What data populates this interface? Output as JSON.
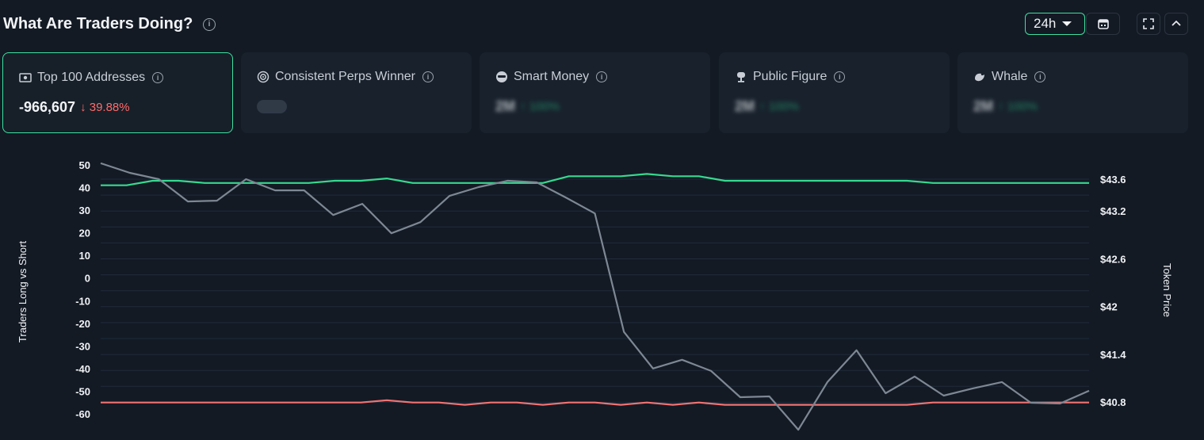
{
  "header": {
    "title": "What Are Traders Doing?",
    "timeframe": "24h"
  },
  "cards": [
    {
      "label": "Top 100 Addresses",
      "icon": "money-icon",
      "value": "-966,607",
      "change": "39.88%",
      "change_dir": "down",
      "active": true
    },
    {
      "label": "Consistent Perps Winner",
      "icon": "target-icon",
      "value": "",
      "change": "",
      "loading": true
    },
    {
      "label": "Smart Money",
      "icon": "sunglasses-icon",
      "value": "2M",
      "change": "100%",
      "change_dir": "up",
      "blurred": true
    },
    {
      "label": "Public Figure",
      "icon": "microphone-icon",
      "value": "2M",
      "change": "100%",
      "change_dir": "up",
      "blurred": true
    },
    {
      "label": "Whale",
      "icon": "whale-icon",
      "value": "2M",
      "change": "100%",
      "change_dir": "up",
      "blurred": true
    }
  ],
  "chart_data": {
    "type": "line",
    "left_axis": {
      "label": "Traders Long vs Short",
      "ticks": [
        "50",
        "40",
        "30",
        "20",
        "10",
        "0",
        "-10",
        "-20",
        "-30",
        "-40",
        "-50",
        "-60"
      ],
      "range": [
        -60,
        50
      ]
    },
    "right_axis": {
      "label": "Token Price",
      "ticks": [
        "$43.6",
        "$43.2",
        "$42.6",
        "$42",
        "$41.4",
        "$40.8"
      ],
      "range": [
        40.8,
        43.6
      ]
    },
    "grid": true,
    "series": [
      {
        "color": "#36d98f",
        "axis": "left",
        "values": [
          41,
          41,
          43,
          43,
          42,
          42,
          42,
          42,
          42,
          43,
          43,
          44,
          42,
          42,
          42,
          42,
          42,
          42,
          45,
          45,
          45,
          46,
          45,
          45,
          43,
          43,
          43,
          43,
          43,
          43,
          43,
          43,
          42,
          42,
          42,
          42,
          42,
          42,
          42
        ]
      },
      {
        "color": "#f07272",
        "axis": "left",
        "values": [
          -55,
          -55,
          -55,
          -55,
          -55,
          -55,
          -55,
          -55,
          -55,
          -55,
          -55,
          -54,
          -55,
          -55,
          -56,
          -55,
          -55,
          -56,
          -55,
          -55,
          -56,
          -55,
          -56,
          -55,
          -56,
          -56,
          -56,
          -56,
          -56,
          -56,
          -56,
          -56,
          -55,
          -55,
          -55,
          -55,
          -55,
          -55,
          -55
        ]
      },
      {
        "color": "#7d8894",
        "axis": "right",
        "values": [
          43.8,
          43.68,
          43.6,
          43.32,
          43.33,
          43.6,
          43.46,
          43.46,
          43.15,
          43.29,
          42.92,
          43.06,
          43.39,
          43.5,
          43.58,
          43.56,
          43.37,
          43.17,
          41.68,
          41.22,
          41.33,
          41.19,
          40.86,
          40.87,
          40.45,
          41.05,
          41.45,
          40.91,
          41.12,
          40.88,
          40.97,
          41.05,
          40.79,
          40.78,
          40.94
        ]
      }
    ]
  }
}
